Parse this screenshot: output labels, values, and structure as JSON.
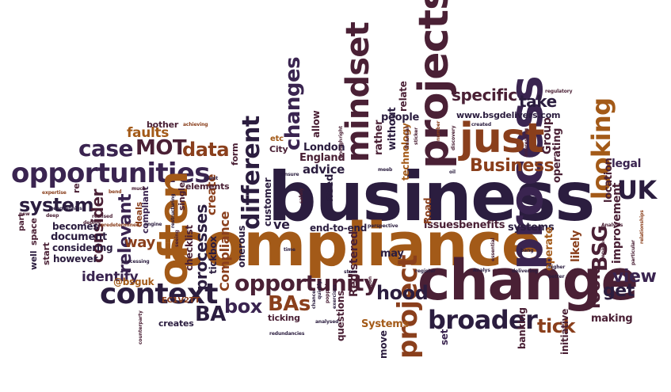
{
  "palette": {
    "dark_navy": "#2b1d3f",
    "plum": "#4a2035",
    "maroon": "#5a1f2b",
    "rust": "#8a3f1c",
    "ochre": "#a35a18",
    "deep_purple": "#3a2450",
    "background": "#ffffff"
  },
  "words": [
    {
      "text": "business",
      "color": "#2b1d3f"
    },
    {
      "text": "compliance",
      "color": "#a35a18"
    },
    {
      "text": "change",
      "color": "#4a2035"
    },
    {
      "text": "process",
      "color": "#3a2450"
    },
    {
      "text": "projects",
      "color": "#4a2035"
    },
    {
      "text": "just",
      "color": "#8a3f1c"
    },
    {
      "text": "opportunities",
      "color": "#3a2450"
    },
    {
      "text": "often",
      "color": "#a35a18"
    },
    {
      "text": "context",
      "color": "#2b1d3f"
    },
    {
      "text": "mindset",
      "color": "#4a2035"
    },
    {
      "text": "looking",
      "color": "#a35a18"
    },
    {
      "text": "broader",
      "color": "#2b1d3f"
    },
    {
      "text": "project",
      "color": "#8a3f1c"
    },
    {
      "text": "opportunity",
      "color": "#4a2035"
    },
    {
      "text": "different",
      "color": "#2b1d3f"
    },
    {
      "text": "changes",
      "color": "#3a2450"
    },
    {
      "text": "case",
      "color": "#3a2450"
    },
    {
      "text": "MOT",
      "color": "#4a2035"
    },
    {
      "text": "data",
      "color": "#8a3f1c"
    },
    {
      "text": "Business",
      "color": "#8a3f1c"
    },
    {
      "text": "specific",
      "color": "#4a2035"
    },
    {
      "text": "take",
      "color": "#2b1d3f"
    },
    {
      "text": "www.bsgdelivers.com",
      "color": "#2b1d3f"
    },
    {
      "text": "UK",
      "color": "#2b1d3f"
    },
    {
      "text": "BSG",
      "color": "#4a2035"
    },
    {
      "text": "view",
      "color": "#3a2450"
    },
    {
      "text": "get",
      "color": "#2b1d3f"
    },
    {
      "text": "look",
      "color": "#4a2035"
    },
    {
      "text": "BAs",
      "color": "#8a3f1c"
    },
    {
      "text": "BA",
      "color": "#2b1d3f"
    },
    {
      "text": "box",
      "color": "#3a2450"
    },
    {
      "text": "hood",
      "color": "#2b1d3f"
    },
    {
      "text": "tick",
      "color": "#8a3f1c"
    },
    {
      "text": "system",
      "color": "#2b1d3f"
    },
    {
      "text": "consider",
      "color": "#4a2035"
    },
    {
      "text": "relevant",
      "color": "#3a2450"
    },
    {
      "text": "way",
      "color": "#8a3f1c"
    },
    {
      "text": "processes",
      "color": "#2b1d3f"
    },
    {
      "text": "create",
      "color": "#8a3f1c"
    },
    {
      "text": "Compliance",
      "color": "#8a3f1c"
    },
    {
      "text": "faults",
      "color": "#a35a18"
    },
    {
      "text": "bother",
      "color": "#4a2035"
    },
    {
      "text": "identify",
      "color": "#3a2450"
    },
    {
      "text": "advice",
      "color": "#2b1d3f"
    },
    {
      "text": "ve",
      "color": "#2b1d3f"
    },
    {
      "text": "end-to-end",
      "color": "#2b1d3f"
    },
    {
      "text": "issues",
      "color": "#4a2035"
    },
    {
      "text": "benefits",
      "color": "#4a2035"
    },
    {
      "text": "systems",
      "color": "#2b1d3f"
    },
    {
      "text": "operate",
      "color": "#a35a18"
    },
    {
      "text": "likely",
      "color": "#8a3f1c"
    },
    {
      "text": "improvement",
      "color": "#4a2035"
    },
    {
      "text": "location",
      "color": "#4a2035"
    },
    {
      "text": "legal",
      "color": "#3a2450"
    },
    {
      "text": "Group",
      "color": "#4a2035"
    },
    {
      "text": "operating",
      "color": "#4a2035"
    },
    {
      "text": "Registered",
      "color": "#4a2035"
    },
    {
      "text": "Systems",
      "color": "#a35a18"
    },
    {
      "text": "questions",
      "color": "#4a2035"
    },
    {
      "text": "move",
      "color": "#2b1d3f"
    },
    {
      "text": "set",
      "color": "#3a2450"
    },
    {
      "text": "banking",
      "color": "#4a2035"
    },
    {
      "text": "initiative",
      "color": "#4a2035"
    },
    {
      "text": "making",
      "color": "#4a2035"
    },
    {
      "text": "London",
      "color": "#2b1d3f"
    },
    {
      "text": "England",
      "color": "#4a2035"
    },
    {
      "text": "City",
      "color": "#4a2035"
    },
    {
      "text": "customer",
      "color": "#2b1d3f"
    },
    {
      "text": "need",
      "color": "#2b1d3f"
    },
    {
      "text": "may",
      "color": "#2b1d3f"
    },
    {
      "text": "rather",
      "color": "#4a2035"
    },
    {
      "text": "without",
      "color": "#2b1d3f"
    },
    {
      "text": "people",
      "color": "#2b1d3f"
    },
    {
      "text": "relate",
      "color": "#4a2035"
    },
    {
      "text": "technology",
      "color": "#a35a18"
    },
    {
      "text": "Road",
      "color": "#8a3f1c"
    },
    {
      "text": "allow",
      "color": "#4a2035"
    },
    {
      "text": "etc",
      "color": "#a35a18"
    },
    {
      "text": "form",
      "color": "#4a2035"
    },
    {
      "text": "onerous",
      "color": "#2b1d3f"
    },
    {
      "text": "tickbox",
      "color": "#2b1d3f"
    },
    {
      "text": "checklist",
      "color": "#4a2035"
    },
    {
      "text": "single",
      "color": "#4a2035"
    },
    {
      "text": "elements",
      "color": "#4a2035"
    },
    {
      "text": "compliant",
      "color": "#3a2450"
    },
    {
      "text": "deals",
      "color": "#8a3f1c"
    },
    {
      "text": "@bsguk",
      "color": "#a35a18"
    },
    {
      "text": "EC1V2TT",
      "color": "#8a3f1c"
    },
    {
      "text": "creates",
      "color": "#2b1d3f"
    },
    {
      "text": "ticking",
      "color": "#4a2035"
    },
    {
      "text": "document",
      "color": "#2b1d3f"
    },
    {
      "text": "becomes",
      "color": "#2b1d3f"
    },
    {
      "text": "considering",
      "color": "#2b1d3f"
    },
    {
      "text": "however",
      "color": "#2b1d3f"
    },
    {
      "text": "start",
      "color": "#4a2035"
    },
    {
      "text": "space",
      "color": "#4a2035"
    },
    {
      "text": "well",
      "color": "#2b1d3f"
    },
    {
      "text": "part",
      "color": "#4a2035"
    },
    {
      "text": "re",
      "color": "#4a2035"
    },
    {
      "text": "achieving",
      "color": "#8a3f1c"
    },
    {
      "text": "expertise",
      "color": "#8a3f1c"
    },
    {
      "text": "bend",
      "color": "#8a3f1c"
    },
    {
      "text": "much",
      "color": "#4a2035"
    },
    {
      "text": "restructuring",
      "color": "#2b1d3f"
    },
    {
      "text": "client",
      "color": "#2b1d3f"
    },
    {
      "text": "geographies",
      "color": "#2b1d3f"
    },
    {
      "text": "new",
      "color": "#4a2035"
    },
    {
      "text": "deep",
      "color": "#4a2035"
    },
    {
      "text": "realised",
      "color": "#4a2035"
    },
    {
      "text": "predetermined",
      "color": "#8a3f1c"
    },
    {
      "text": "deploy",
      "color": "#4a2035"
    },
    {
      "text": "engine",
      "color": "#2b1d3f"
    },
    {
      "text": "processing",
      "color": "#2b1d3f"
    },
    {
      "text": "seeing",
      "color": "#4a2035"
    },
    {
      "text": "time",
      "color": "#2b1d3f"
    },
    {
      "text": "stain",
      "color": "#2b1d3f"
    },
    {
      "text": "notion",
      "color": "#4a2035"
    },
    {
      "text": "popped",
      "color": "#4a2035"
    },
    {
      "text": "quickly",
      "color": "#2b1d3f"
    },
    {
      "text": "chance",
      "color": "#2b1d3f"
    },
    {
      "text": "exercises",
      "color": "#2b1d3f"
    },
    {
      "text": "counterparty",
      "color": "#4a2035"
    },
    {
      "text": "redundancies",
      "color": "#2b1d3f"
    },
    {
      "text": "analysed",
      "color": "#2b1d3f"
    },
    {
      "text": "safely",
      "color": "#4a2035"
    },
    {
      "text": "ensure",
      "color": "#2b1d3f"
    },
    {
      "text": "right",
      "color": "#4a2035"
    },
    {
      "text": "enough",
      "color": "#4a2035"
    },
    {
      "text": "meeb",
      "color": "#2b1d3f"
    },
    {
      "text": "perspective",
      "color": "#2b1d3f"
    },
    {
      "text": "financial",
      "color": "#4a2035"
    },
    {
      "text": "sticker",
      "color": "#4a2035"
    },
    {
      "text": "number",
      "color": "#8a3f1c"
    },
    {
      "text": "oil",
      "color": "#2b1d3f"
    },
    {
      "text": "discovery",
      "color": "#4a2035"
    },
    {
      "text": "created",
      "color": "#2b1d3f"
    },
    {
      "text": "interesting",
      "color": "#4a2035"
    },
    {
      "text": "regulatory",
      "color": "#4a2035"
    },
    {
      "text": "Analysis",
      "color": "#4a2035"
    },
    {
      "text": "repaired",
      "color": "#4a2035"
    },
    {
      "text": "particular",
      "color": "#4a2035"
    },
    {
      "text": "relationships",
      "color": "#8a3f1c"
    },
    {
      "text": "higher",
      "color": "#2b1d3f"
    },
    {
      "text": "better",
      "color": "#2b1d3f"
    },
    {
      "text": "bang",
      "color": "#2b1d3f"
    },
    {
      "text": "delivering",
      "color": "#2b1d3f"
    },
    {
      "text": "FATCA",
      "color": "#4a2035"
    },
    {
      "text": "Analys",
      "color": "#2b1d3f"
    },
    {
      "text": "essential",
      "color": "#4a2035"
    },
    {
      "text": "register",
      "color": "#2b1d3f"
    }
  ]
}
